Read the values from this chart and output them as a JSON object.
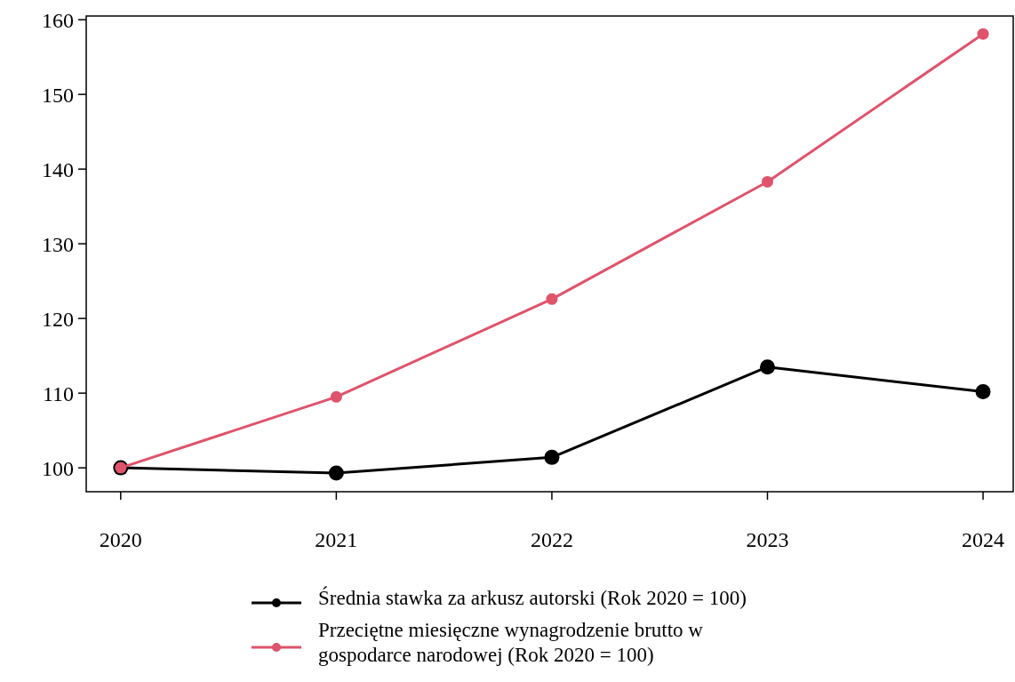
{
  "chart_data": {
    "type": "line",
    "x": [
      2020,
      2021,
      2022,
      2023,
      2024
    ],
    "series": [
      {
        "name": "Średnia stawka za arkusz autorski (Rok 2020 = 100)",
        "color": "#000000",
        "values": [
          100,
          99.3,
          101.4,
          113.5,
          110.2
        ]
      },
      {
        "name": "Przeciętne miesięczne wynagrodzenie brutto w gospodarce narodowej (Rok 2020 = 100)",
        "color": "#df536b",
        "values": [
          100,
          109.5,
          122.6,
          138.3,
          158.1
        ]
      }
    ],
    "xlim": [
      2019.84,
      2024.14
    ],
    "xticks": [
      2020,
      2021,
      2022,
      2023,
      2024
    ],
    "ylim": [
      96.8,
      160.5
    ],
    "yticks": [
      100,
      110,
      120,
      130,
      140,
      150,
      160
    ],
    "grid": false,
    "legend": "bottom",
    "marker": "circle",
    "line_style": "solid"
  }
}
